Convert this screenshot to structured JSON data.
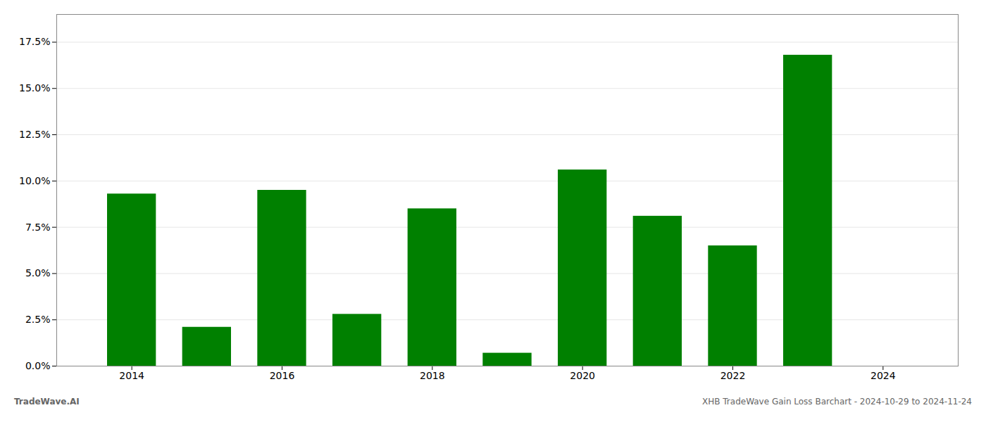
{
  "chart_data": {
    "type": "bar",
    "x": [
      2014,
      2015,
      2016,
      2017,
      2018,
      2019,
      2020,
      2021,
      2022,
      2023
    ],
    "values": [
      0.093,
      0.021,
      0.095,
      0.028,
      0.085,
      0.007,
      0.106,
      0.081,
      0.065,
      0.168
    ],
    "color": "#008000",
    "xlim": [
      2013.0,
      2025.0
    ],
    "xticks": [
      2014,
      2016,
      2018,
      2020,
      2022,
      2024
    ],
    "ylim": [
      0,
      0.19
    ],
    "yticks": [
      {
        "value": 0.0,
        "label": "0.0%"
      },
      {
        "value": 0.025,
        "label": "2.5%"
      },
      {
        "value": 0.05,
        "label": "5.0%"
      },
      {
        "value": 0.075,
        "label": "7.5%"
      },
      {
        "value": 0.1,
        "label": "10.0%"
      },
      {
        "value": 0.125,
        "label": "12.5%"
      },
      {
        "value": 0.15,
        "label": "15.0%"
      },
      {
        "value": 0.175,
        "label": "17.5%"
      }
    ],
    "grid": true,
    "annotations": [
      "TradeWave.AI",
      "XHB TradeWave Gain Loss Barchart - 2024-10-29 to 2024-11-24"
    ]
  }
}
